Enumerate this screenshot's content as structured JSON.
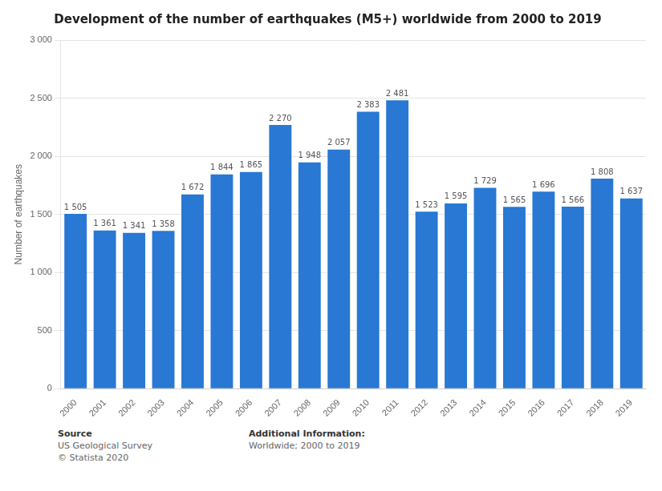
{
  "chart_data": {
    "type": "bar",
    "title": "Development of the number of earthquakes (M5+) worldwide from 2000 to 2019",
    "ylabel": "Number of earthquakes",
    "categories": [
      "2000",
      "2001",
      "2002",
      "2003",
      "2004",
      "2005",
      "2006",
      "2007",
      "2008",
      "2009",
      "2010",
      "2011",
      "2012",
      "2013",
      "2014",
      "2015",
      "2016",
      "2017",
      "2018",
      "2019"
    ],
    "values": [
      1505,
      1361,
      1341,
      1358,
      1672,
      1844,
      1865,
      2270,
      1948,
      2057,
      2383,
      2481,
      1523,
      1595,
      1729,
      1565,
      1696,
      1566,
      1808,
      1637
    ],
    "value_labels": [
      "1 505",
      "1 361",
      "1 341",
      "1 358",
      "1 672",
      "1 844",
      "1 865",
      "2 270",
      "1 948",
      "2 057",
      "2 383",
      "2 481",
      "1 523",
      "1 595",
      "1 729",
      "1 565",
      "1 696",
      "1 566",
      "1 808",
      "1 637"
    ],
    "data_labels": true,
    "color": "#2878d4",
    "ylim": [
      0,
      3000
    ],
    "yticks": [
      0,
      500,
      {
        "value": 1000,
        "label": "1 000"
      },
      {
        "value": 1500,
        "label": "1 500"
      },
      {
        "value": 2000,
        "label": "2 000"
      },
      {
        "value": 2500,
        "label": "2 500"
      },
      {
        "value": 3000,
        "label": "3 000"
      }
    ],
    "grid": true,
    "annotations": [
      [
        "Source",
        "US Geological Survey",
        "© Statista 2020"
      ],
      [
        "Additional Information:",
        "Worldwide; 2000 to 2019"
      ]
    ]
  }
}
